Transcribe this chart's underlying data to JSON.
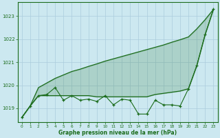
{
  "title": "Graphe pression niveau de la mer (hPa)",
  "background_color": "#cce8f0",
  "grid_color": "#aaccdd",
  "line_color": "#1a6b1a",
  "fill_color": "#4da64d",
  "xlim": [
    -0.5,
    23.5
  ],
  "ylim": [
    1018.4,
    1023.6
  ],
  "yticks": [
    1019,
    1020,
    1021,
    1022,
    1023
  ],
  "xticks": [
    0,
    1,
    2,
    3,
    4,
    5,
    6,
    7,
    8,
    9,
    10,
    11,
    12,
    13,
    14,
    15,
    16,
    17,
    18,
    19,
    20,
    21,
    22,
    23
  ],
  "x": [
    0,
    1,
    2,
    3,
    4,
    5,
    6,
    7,
    8,
    9,
    10,
    11,
    12,
    13,
    14,
    15,
    16,
    17,
    18,
    19,
    20,
    21,
    22,
    23
  ],
  "y_actual": [
    1018.6,
    1019.1,
    1019.55,
    1019.6,
    1019.9,
    1019.35,
    1019.55,
    1019.35,
    1019.4,
    1019.3,
    1019.55,
    1019.15,
    1019.4,
    1019.35,
    1018.75,
    1018.75,
    1019.35,
    1019.15,
    1019.15,
    1019.1,
    1019.85,
    1020.85,
    1022.2,
    1023.3
  ],
  "y_upper": [
    1018.6,
    1019.1,
    1019.9,
    1020.1,
    1020.3,
    1020.45,
    1020.6,
    1020.7,
    1020.82,
    1020.93,
    1021.05,
    1021.15,
    1021.25,
    1021.35,
    1021.45,
    1021.55,
    1021.65,
    1021.75,
    1021.87,
    1021.98,
    1022.1,
    1022.45,
    1022.85,
    1023.3
  ],
  "y_lower": [
    1018.6,
    1019.1,
    1019.55,
    1019.55,
    1019.55,
    1019.55,
    1019.55,
    1019.55,
    1019.55,
    1019.5,
    1019.5,
    1019.5,
    1019.5,
    1019.5,
    1019.5,
    1019.5,
    1019.6,
    1019.65,
    1019.7,
    1019.75,
    1019.85,
    1020.85,
    1022.2,
    1023.3
  ]
}
